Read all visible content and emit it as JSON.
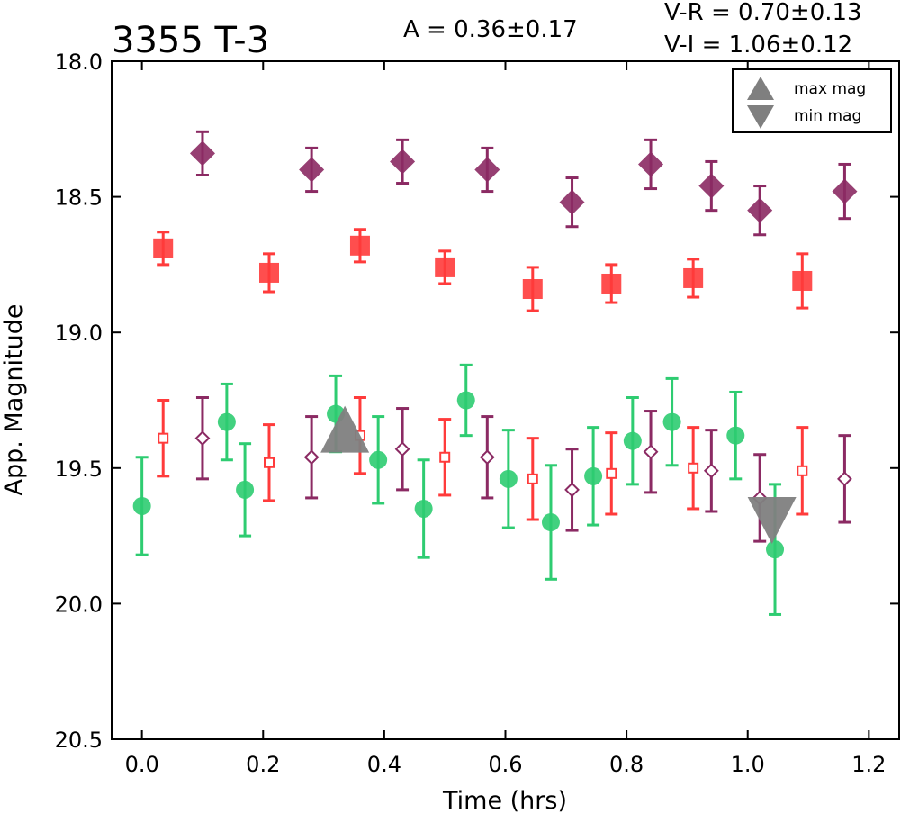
{
  "chart_data": {
    "type": "scatter",
    "title": "3355 T-3",
    "annotations": {
      "amplitude": "A  = 0.36±0.17",
      "v_r": "V-R = 0.70±0.13",
      "v_i": "V-I  = 1.06±0.12"
    },
    "xlabel": "Time (hrs)",
    "ylabel": "App. Magnitude",
    "xlim": [
      -0.05,
      1.25
    ],
    "ylim": [
      18.0,
      20.5
    ],
    "y_inverted": true,
    "x_ticks": [
      "0.0",
      "0.2",
      "0.4",
      "0.6",
      "0.8",
      "1.0",
      "1.2"
    ],
    "y_ticks": [
      "18.0",
      "18.5",
      "19.0",
      "19.5",
      "20.0",
      "20.5"
    ],
    "grid": false,
    "legend": {
      "placement": "top-right",
      "entries": [
        {
          "label": "max mag",
          "marker": "triangle-up",
          "color": "#7f7f7f"
        },
        {
          "label": "min mag",
          "marker": "triangle-down",
          "color": "#7f7f7f"
        }
      ]
    },
    "series": [
      {
        "marker": "diamond",
        "filled": true,
        "color": "#8b2a63",
        "x": [
          0.1,
          0.28,
          0.43,
          0.57,
          0.71,
          0.84,
          0.94,
          1.02,
          1.16
        ],
        "y": [
          18.34,
          18.4,
          18.37,
          18.4,
          18.52,
          18.38,
          18.46,
          18.55,
          18.48
        ],
        "err": [
          0.08,
          0.08,
          0.08,
          0.08,
          0.09,
          0.09,
          0.09,
          0.09,
          0.1
        ]
      },
      {
        "marker": "square",
        "filled": true,
        "color": "#ff3b3b",
        "x": [
          0.035,
          0.21,
          0.36,
          0.5,
          0.645,
          0.775,
          0.91,
          1.09
        ],
        "y": [
          18.69,
          18.78,
          18.68,
          18.76,
          18.84,
          18.82,
          18.8,
          18.81
        ],
        "err": [
          0.06,
          0.07,
          0.06,
          0.06,
          0.08,
          0.07,
          0.07,
          0.1
        ]
      },
      {
        "marker": "circle",
        "filled": true,
        "color": "#2ecc71",
        "x": [
          0.0,
          0.14,
          0.17,
          0.32,
          0.39,
          0.465,
          0.535,
          0.605,
          0.675,
          0.745,
          0.81,
          0.875,
          0.98,
          1.045
        ],
        "y": [
          19.64,
          19.33,
          19.58,
          19.3,
          19.47,
          19.65,
          19.25,
          19.54,
          19.7,
          19.53,
          19.4,
          19.33,
          19.38,
          19.8
        ],
        "err": [
          0.18,
          0.14,
          0.17,
          0.14,
          0.16,
          0.18,
          0.13,
          0.18,
          0.21,
          0.18,
          0.16,
          0.16,
          0.16,
          0.24
        ]
      },
      {
        "marker": "square",
        "filled": false,
        "color": "#ff3b3b",
        "x": [
          0.035,
          0.21,
          0.36,
          0.5,
          0.645,
          0.775,
          0.91,
          1.09
        ],
        "y": [
          19.39,
          19.48,
          19.38,
          19.46,
          19.54,
          19.52,
          19.5,
          19.51
        ],
        "err": [
          0.14,
          0.14,
          0.14,
          0.14,
          0.15,
          0.15,
          0.15,
          0.16
        ]
      },
      {
        "marker": "diamond",
        "filled": false,
        "color": "#8b2a63",
        "x": [
          0.1,
          0.28,
          0.43,
          0.57,
          0.71,
          0.84,
          0.94,
          1.02,
          1.16
        ],
        "y": [
          19.39,
          19.46,
          19.43,
          19.46,
          19.58,
          19.44,
          19.51,
          19.61,
          19.54
        ],
        "err": [
          0.15,
          0.15,
          0.15,
          0.15,
          0.15,
          0.15,
          0.15,
          0.16,
          0.16
        ]
      }
    ],
    "extrema": [
      {
        "label": "max mag",
        "marker": "triangle-up",
        "x": 0.335,
        "y": 19.37
      },
      {
        "label": "min mag",
        "marker": "triangle-down",
        "x": 1.04,
        "y": 19.68
      }
    ]
  }
}
